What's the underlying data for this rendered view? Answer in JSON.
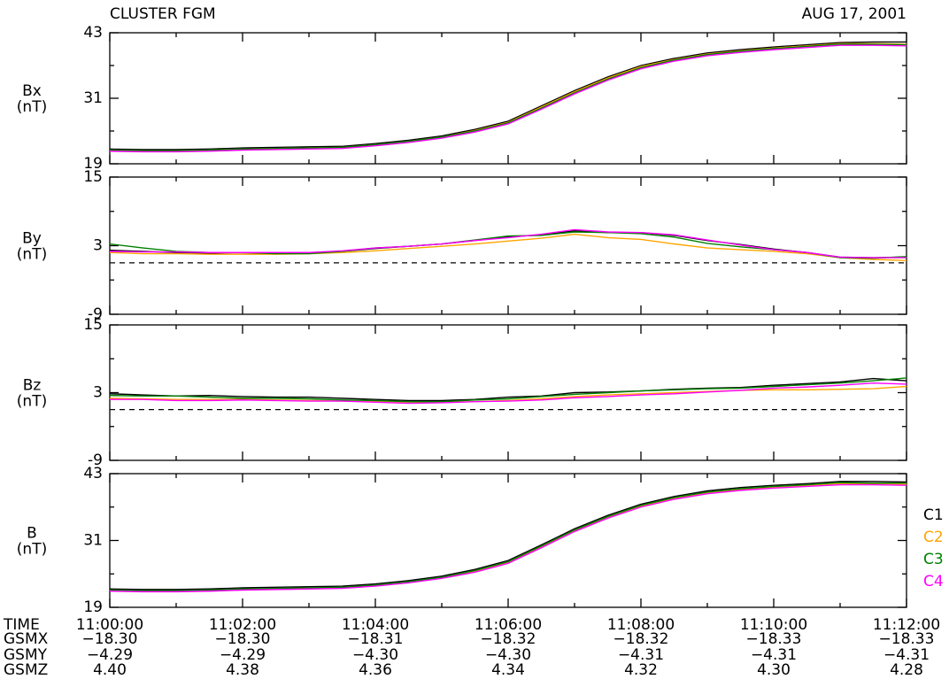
{
  "header": {
    "title": "CLUSTER FGM",
    "date": "AUG 17, 2001"
  },
  "time_axis": {
    "xlim": [
      "11:00:00",
      "11:12:00"
    ],
    "xticks": [
      "11:00:00",
      "11:02:00",
      "11:04:00",
      "11:06:00",
      "11:08:00",
      "11:10:00",
      "11:12:00"
    ],
    "xminor": [
      "11:01:00",
      "11:03:00",
      "11:05:00",
      "11:07:00",
      "11:09:00",
      "11:11:00"
    ]
  },
  "ephemeris": {
    "labels": [
      "TIME",
      "GSMX",
      "GSMY",
      "GSMZ"
    ],
    "rows": [
      [
        "−18.30",
        "−18.30",
        "−18.31",
        "−18.32",
        "−18.32",
        "−18.33",
        "−18.33"
      ],
      [
        "−4.29",
        "−4.29",
        "−4.30",
        "−4.30",
        "−4.31",
        "−4.31",
        "−4.31"
      ],
      [
        "4.40",
        "4.38",
        "4.36",
        "4.34",
        "4.32",
        "4.30",
        "4.28"
      ]
    ]
  },
  "chart_data": [
    {
      "type": "line",
      "ylabel": "Bx",
      "yunit": "(nT)",
      "ylim": [
        19,
        43
      ],
      "yticks": [
        19,
        31,
        43
      ],
      "yminor": [
        25,
        37
      ],
      "x": [
        "11:00:00",
        "11:00:30",
        "11:01:00",
        "11:01:30",
        "11:02:00",
        "11:02:30",
        "11:03:00",
        "11:03:30",
        "11:04:00",
        "11:04:30",
        "11:05:00",
        "11:05:30",
        "11:06:00",
        "11:06:30",
        "11:07:00",
        "11:07:30",
        "11:08:00",
        "11:08:30",
        "11:09:00",
        "11:09:30",
        "11:10:00",
        "11:10:30",
        "11:11:00",
        "11:11:30",
        "11:12:00"
      ],
      "series": [
        {
          "name": "C1",
          "color": "#000000",
          "values": [
            21.7,
            21.6,
            21.6,
            21.7,
            21.9,
            22.0,
            22.1,
            22.2,
            22.7,
            23.3,
            24.1,
            25.3,
            26.8,
            29.6,
            32.4,
            34.9,
            37.0,
            38.3,
            39.3,
            39.9,
            40.4,
            40.8,
            41.2,
            41.3,
            41.3
          ]
        },
        {
          "name": "C2",
          "color": "#ffa500",
          "values": [
            21.5,
            21.4,
            21.4,
            21.5,
            21.7,
            21.8,
            21.9,
            22.0,
            22.5,
            23.1,
            23.9,
            25.1,
            26.6,
            29.4,
            32.2,
            34.7,
            36.8,
            38.1,
            39.1,
            39.7,
            40.2,
            40.6,
            41.0,
            41.0,
            40.9
          ]
        },
        {
          "name": "C3",
          "color": "#008000",
          "values": [
            21.5,
            21.4,
            21.4,
            21.5,
            21.7,
            21.8,
            21.9,
            22.0,
            22.5,
            23.1,
            23.9,
            25.0,
            26.5,
            29.2,
            32.0,
            34.5,
            36.6,
            38.0,
            39.0,
            39.6,
            40.1,
            40.5,
            40.9,
            40.9,
            40.8
          ]
        },
        {
          "name": "C4",
          "color": "#ff00ff",
          "values": [
            21.3,
            21.2,
            21.2,
            21.3,
            21.5,
            21.6,
            21.7,
            21.8,
            22.3,
            22.9,
            23.7,
            24.8,
            26.3,
            29.0,
            31.8,
            34.3,
            36.4,
            37.8,
            38.8,
            39.4,
            39.9,
            40.3,
            40.7,
            40.7,
            40.6
          ]
        }
      ]
    },
    {
      "type": "line",
      "ylabel": "By",
      "yunit": "(nT)",
      "ylim": [
        -9,
        15
      ],
      "yticks": [
        -9,
        3,
        15
      ],
      "yminor": [
        -3,
        9
      ],
      "reference_line": 0,
      "x": [
        "11:00:00",
        "11:00:30",
        "11:01:00",
        "11:01:30",
        "11:02:00",
        "11:02:30",
        "11:03:00",
        "11:03:30",
        "11:04:00",
        "11:04:30",
        "11:05:00",
        "11:05:30",
        "11:06:00",
        "11:06:30",
        "11:07:00",
        "11:07:30",
        "11:08:00",
        "11:08:30",
        "11:09:00",
        "11:09:30",
        "11:10:00",
        "11:10:30",
        "11:11:00",
        "11:11:30",
        "11:12:00"
      ],
      "series": [
        {
          "name": "C1",
          "color": "#000000",
          "values": [
            2.2,
            2.0,
            1.8,
            1.7,
            1.8,
            1.7,
            1.7,
            2.0,
            2.5,
            2.9,
            3.3,
            3.9,
            4.5,
            4.9,
            5.6,
            5.3,
            5.3,
            4.8,
            3.9,
            3.2,
            2.4,
            1.8,
            1.0,
            0.9,
            1.0
          ]
        },
        {
          "name": "C2",
          "color": "#ffa500",
          "values": [
            1.8,
            1.6,
            1.6,
            1.5,
            1.5,
            1.5,
            1.6,
            1.8,
            2.1,
            2.5,
            2.9,
            3.3,
            3.8,
            4.3,
            5.0,
            4.4,
            4.1,
            3.3,
            2.6,
            2.3,
            2.0,
            1.6,
            0.9,
            0.6,
            0.4
          ]
        },
        {
          "name": "C3",
          "color": "#008000",
          "values": [
            3.3,
            2.6,
            2.0,
            1.8,
            1.8,
            1.6,
            1.6,
            2.0,
            2.6,
            2.9,
            3.3,
            4.0,
            4.7,
            4.8,
            5.4,
            5.3,
            5.1,
            4.5,
            3.4,
            2.8,
            2.3,
            1.8,
            0.9,
            0.8,
            1.1
          ]
        },
        {
          "name": "C4",
          "color": "#ff00ff",
          "values": [
            2.0,
            1.9,
            1.9,
            1.8,
            1.8,
            1.8,
            1.8,
            2.1,
            2.6,
            2.9,
            3.3,
            3.9,
            4.4,
            5.0,
            5.8,
            5.4,
            5.3,
            4.9,
            4.0,
            3.1,
            2.3,
            1.8,
            1.0,
            0.9,
            0.9
          ]
        }
      ]
    },
    {
      "type": "line",
      "ylabel": "Bz",
      "yunit": "(nT)",
      "ylim": [
        -9,
        15
      ],
      "yticks": [
        -9,
        3,
        15
      ],
      "yminor": [
        -3,
        9
      ],
      "reference_line": 0,
      "x": [
        "11:00:00",
        "11:00:30",
        "11:01:00",
        "11:01:30",
        "11:02:00",
        "11:02:30",
        "11:03:00",
        "11:03:30",
        "11:04:00",
        "11:04:30",
        "11:05:00",
        "11:05:30",
        "11:06:00",
        "11:06:30",
        "11:07:00",
        "11:07:30",
        "11:08:00",
        "11:08:30",
        "11:09:00",
        "11:09:30",
        "11:10:00",
        "11:10:30",
        "11:11:00",
        "11:11:30",
        "11:12:00"
      ],
      "series": [
        {
          "name": "C1",
          "color": "#000000",
          "values": [
            2.8,
            2.6,
            2.4,
            2.5,
            2.3,
            2.2,
            2.2,
            2.0,
            1.8,
            1.6,
            1.6,
            1.8,
            2.2,
            2.4,
            3.0,
            3.1,
            3.3,
            3.6,
            3.8,
            3.9,
            4.3,
            4.6,
            4.9,
            5.5,
            5.1
          ]
        },
        {
          "name": "C2",
          "color": "#ffa500",
          "values": [
            2.0,
            1.9,
            1.8,
            1.8,
            1.8,
            1.7,
            1.6,
            1.5,
            1.4,
            1.2,
            1.3,
            1.4,
            1.6,
            1.9,
            2.3,
            2.6,
            2.8,
            3.0,
            3.2,
            3.4,
            3.5,
            3.5,
            3.6,
            3.7,
            4.1
          ]
        },
        {
          "name": "C3",
          "color": "#008000",
          "values": [
            2.5,
            2.4,
            2.4,
            2.2,
            2.0,
            2.0,
            1.9,
            1.7,
            1.6,
            1.4,
            1.4,
            1.7,
            1.9,
            2.3,
            2.7,
            3.0,
            3.3,
            3.5,
            3.7,
            3.8,
            4.1,
            4.4,
            4.7,
            5.1,
            5.6
          ]
        },
        {
          "name": "C4",
          "color": "#ff00ff",
          "values": [
            1.8,
            1.8,
            1.6,
            1.6,
            1.7,
            1.6,
            1.5,
            1.5,
            1.3,
            1.1,
            1.2,
            1.4,
            1.5,
            1.7,
            2.1,
            2.3,
            2.6,
            2.8,
            3.1,
            3.4,
            3.8,
            4.0,
            4.3,
            4.7,
            4.5
          ]
        }
      ]
    },
    {
      "type": "line",
      "ylabel": "B",
      "yunit": "(nT)",
      "ylim": [
        19,
        43
      ],
      "yticks": [
        19,
        31,
        43
      ],
      "yminor": [
        25,
        37
      ],
      "x": [
        "11:00:00",
        "11:00:30",
        "11:01:00",
        "11:01:30",
        "11:02:00",
        "11:02:30",
        "11:03:00",
        "11:03:30",
        "11:04:00",
        "11:04:30",
        "11:05:00",
        "11:05:30",
        "11:06:00",
        "11:06:30",
        "11:07:00",
        "11:07:30",
        "11:08:00",
        "11:08:30",
        "11:09:00",
        "11:09:30",
        "11:10:00",
        "11:10:30",
        "11:11:00",
        "11:11:30",
        "11:12:00"
      ],
      "series": [
        {
          "name": "C1",
          "color": "#000000",
          "values": [
            22.3,
            22.2,
            22.2,
            22.3,
            22.5,
            22.6,
            22.7,
            22.8,
            23.2,
            23.8,
            24.6,
            25.8,
            27.4,
            30.2,
            33.1,
            35.5,
            37.5,
            38.9,
            39.9,
            40.5,
            40.9,
            41.2,
            41.6,
            41.6,
            41.5
          ]
        },
        {
          "name": "C2",
          "color": "#ffa500",
          "values": [
            22.0,
            21.9,
            21.9,
            22.0,
            22.2,
            22.3,
            22.4,
            22.5,
            22.9,
            23.5,
            24.3,
            25.5,
            27.1,
            29.9,
            32.8,
            35.2,
            37.2,
            38.6,
            39.6,
            40.2,
            40.6,
            40.9,
            41.2,
            41.2,
            41.1
          ]
        },
        {
          "name": "C3",
          "color": "#008000",
          "values": [
            22.1,
            22.0,
            22.0,
            22.1,
            22.3,
            22.4,
            22.5,
            22.6,
            23.0,
            23.6,
            24.4,
            25.6,
            27.2,
            30.0,
            32.9,
            35.3,
            37.3,
            38.7,
            39.7,
            40.3,
            40.7,
            41.0,
            41.4,
            41.3,
            41.3
          ]
        },
        {
          "name": "C4",
          "color": "#ff00ff",
          "values": [
            21.9,
            21.8,
            21.8,
            21.9,
            22.1,
            22.2,
            22.3,
            22.4,
            22.8,
            23.4,
            24.2,
            25.3,
            26.9,
            29.7,
            32.6,
            35.0,
            37.0,
            38.4,
            39.4,
            40.0,
            40.4,
            40.7,
            41.0,
            41.0,
            40.9
          ]
        }
      ]
    }
  ]
}
